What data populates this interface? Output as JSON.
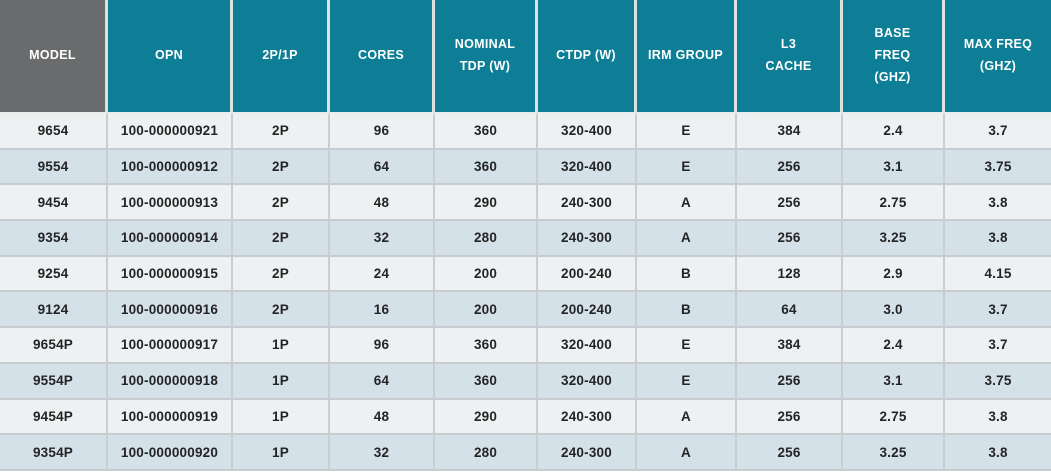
{
  "theme": {
    "header_teal": "#0d7e95",
    "header_gray": "#6a6b6c",
    "header_text": "#ffffff",
    "row_stripe_gray": "#eef0f1",
    "row_stripe_blue": "#d4e1e9",
    "cell_text": "#232425",
    "grid_line": "#c9ced1"
  },
  "table": {
    "header": [
      {
        "id": "model",
        "label": "MODEL"
      },
      {
        "id": "opn",
        "label": "OPN"
      },
      {
        "id": "sockets",
        "label": "2P/1P"
      },
      {
        "id": "cores",
        "label": "CORES"
      },
      {
        "id": "nominal_tdp",
        "label": "NOMINAL\nTDP (W)"
      },
      {
        "id": "ctdp",
        "label": "CTDP (W)"
      },
      {
        "id": "irm_group",
        "label": "IRM GROUP"
      },
      {
        "id": "l3_cache",
        "label": "L3\nCACHE"
      },
      {
        "id": "base_freq",
        "label": "BASE\nFREQ\n(GHZ)"
      },
      {
        "id": "max_freq",
        "label": "MAX FREQ\n(GHZ)"
      }
    ],
    "rows": [
      {
        "model": "9654",
        "opn": "100-000000921",
        "sockets": "2P",
        "cores": "96",
        "nominal_tdp": "360",
        "ctdp": "320-400",
        "irm_group": "E",
        "l3_cache": "384",
        "base_freq": "2.4",
        "max_freq": "3.7"
      },
      {
        "model": "9554",
        "opn": "100-000000912",
        "sockets": "2P",
        "cores": "64",
        "nominal_tdp": "360",
        "ctdp": "320-400",
        "irm_group": "E",
        "l3_cache": "256",
        "base_freq": "3.1",
        "max_freq": "3.75"
      },
      {
        "model": "9454",
        "opn": "100-000000913",
        "sockets": "2P",
        "cores": "48",
        "nominal_tdp": "290",
        "ctdp": "240-300",
        "irm_group": "A",
        "l3_cache": "256",
        "base_freq": "2.75",
        "max_freq": "3.8"
      },
      {
        "model": "9354",
        "opn": "100-000000914",
        "sockets": "2P",
        "cores": "32",
        "nominal_tdp": "280",
        "ctdp": "240-300",
        "irm_group": "A",
        "l3_cache": "256",
        "base_freq": "3.25",
        "max_freq": "3.8"
      },
      {
        "model": "9254",
        "opn": "100-000000915",
        "sockets": "2P",
        "cores": "24",
        "nominal_tdp": "200",
        "ctdp": "200-240",
        "irm_group": "B",
        "l3_cache": "128",
        "base_freq": "2.9",
        "max_freq": "4.15"
      },
      {
        "model": "9124",
        "opn": "100-000000916",
        "sockets": "2P",
        "cores": "16",
        "nominal_tdp": "200",
        "ctdp": "200-240",
        "irm_group": "B",
        "l3_cache": "64",
        "base_freq": "3.0",
        "max_freq": "3.7"
      },
      {
        "model": "9654P",
        "opn": "100-000000917",
        "sockets": "1P",
        "cores": "96",
        "nominal_tdp": "360",
        "ctdp": "320-400",
        "irm_group": "E",
        "l3_cache": "384",
        "base_freq": "2.4",
        "max_freq": "3.7"
      },
      {
        "model": "9554P",
        "opn": "100-000000918",
        "sockets": "1P",
        "cores": "64",
        "nominal_tdp": "360",
        "ctdp": "320-400",
        "irm_group": "E",
        "l3_cache": "256",
        "base_freq": "3.1",
        "max_freq": "3.75"
      },
      {
        "model": "9454P",
        "opn": "100-000000919",
        "sockets": "1P",
        "cores": "48",
        "nominal_tdp": "290",
        "ctdp": "240-300",
        "irm_group": "A",
        "l3_cache": "256",
        "base_freq": "2.75",
        "max_freq": "3.8"
      },
      {
        "model": "9354P",
        "opn": "100-000000920",
        "sockets": "1P",
        "cores": "32",
        "nominal_tdp": "280",
        "ctdp": "240-300",
        "irm_group": "A",
        "l3_cache": "256",
        "base_freq": "3.25",
        "max_freq": "3.8"
      }
    ]
  },
  "chart_data": {
    "type": "table",
    "title": "",
    "columns": [
      "MODEL",
      "OPN",
      "2P/1P",
      "CORES",
      "NOMINAL TDP (W)",
      "CTDP (W)",
      "IRM GROUP",
      "L3 CACHE",
      "BASE FREQ (GHZ)",
      "MAX FREQ (GHZ)"
    ],
    "rows": [
      [
        "9654",
        "100-000000921",
        "2P",
        "96",
        "360",
        "320-400",
        "E",
        "384",
        "2.4",
        "3.7"
      ],
      [
        "9554",
        "100-000000912",
        "2P",
        "64",
        "360",
        "320-400",
        "E",
        "256",
        "3.1",
        "3.75"
      ],
      [
        "9454",
        "100-000000913",
        "2P",
        "48",
        "290",
        "240-300",
        "A",
        "256",
        "2.75",
        "3.8"
      ],
      [
        "9354",
        "100-000000914",
        "2P",
        "32",
        "280",
        "240-300",
        "A",
        "256",
        "3.25",
        "3.8"
      ],
      [
        "9254",
        "100-000000915",
        "2P",
        "24",
        "200",
        "200-240",
        "B",
        "128",
        "2.9",
        "4.15"
      ],
      [
        "9124",
        "100-000000916",
        "2P",
        "16",
        "200",
        "200-240",
        "B",
        "64",
        "3.0",
        "3.7"
      ],
      [
        "9654P",
        "100-000000917",
        "1P",
        "96",
        "360",
        "320-400",
        "E",
        "384",
        "2.4",
        "3.7"
      ],
      [
        "9554P",
        "100-000000918",
        "1P",
        "64",
        "360",
        "320-400",
        "E",
        "256",
        "3.1",
        "3.75"
      ],
      [
        "9454P",
        "100-000000919",
        "1P",
        "48",
        "290",
        "240-300",
        "A",
        "256",
        "2.75",
        "3.8"
      ],
      [
        "9354P",
        "100-000000920",
        "1P",
        "32",
        "280",
        "240-300",
        "A",
        "256",
        "3.25",
        "3.8"
      ]
    ]
  }
}
